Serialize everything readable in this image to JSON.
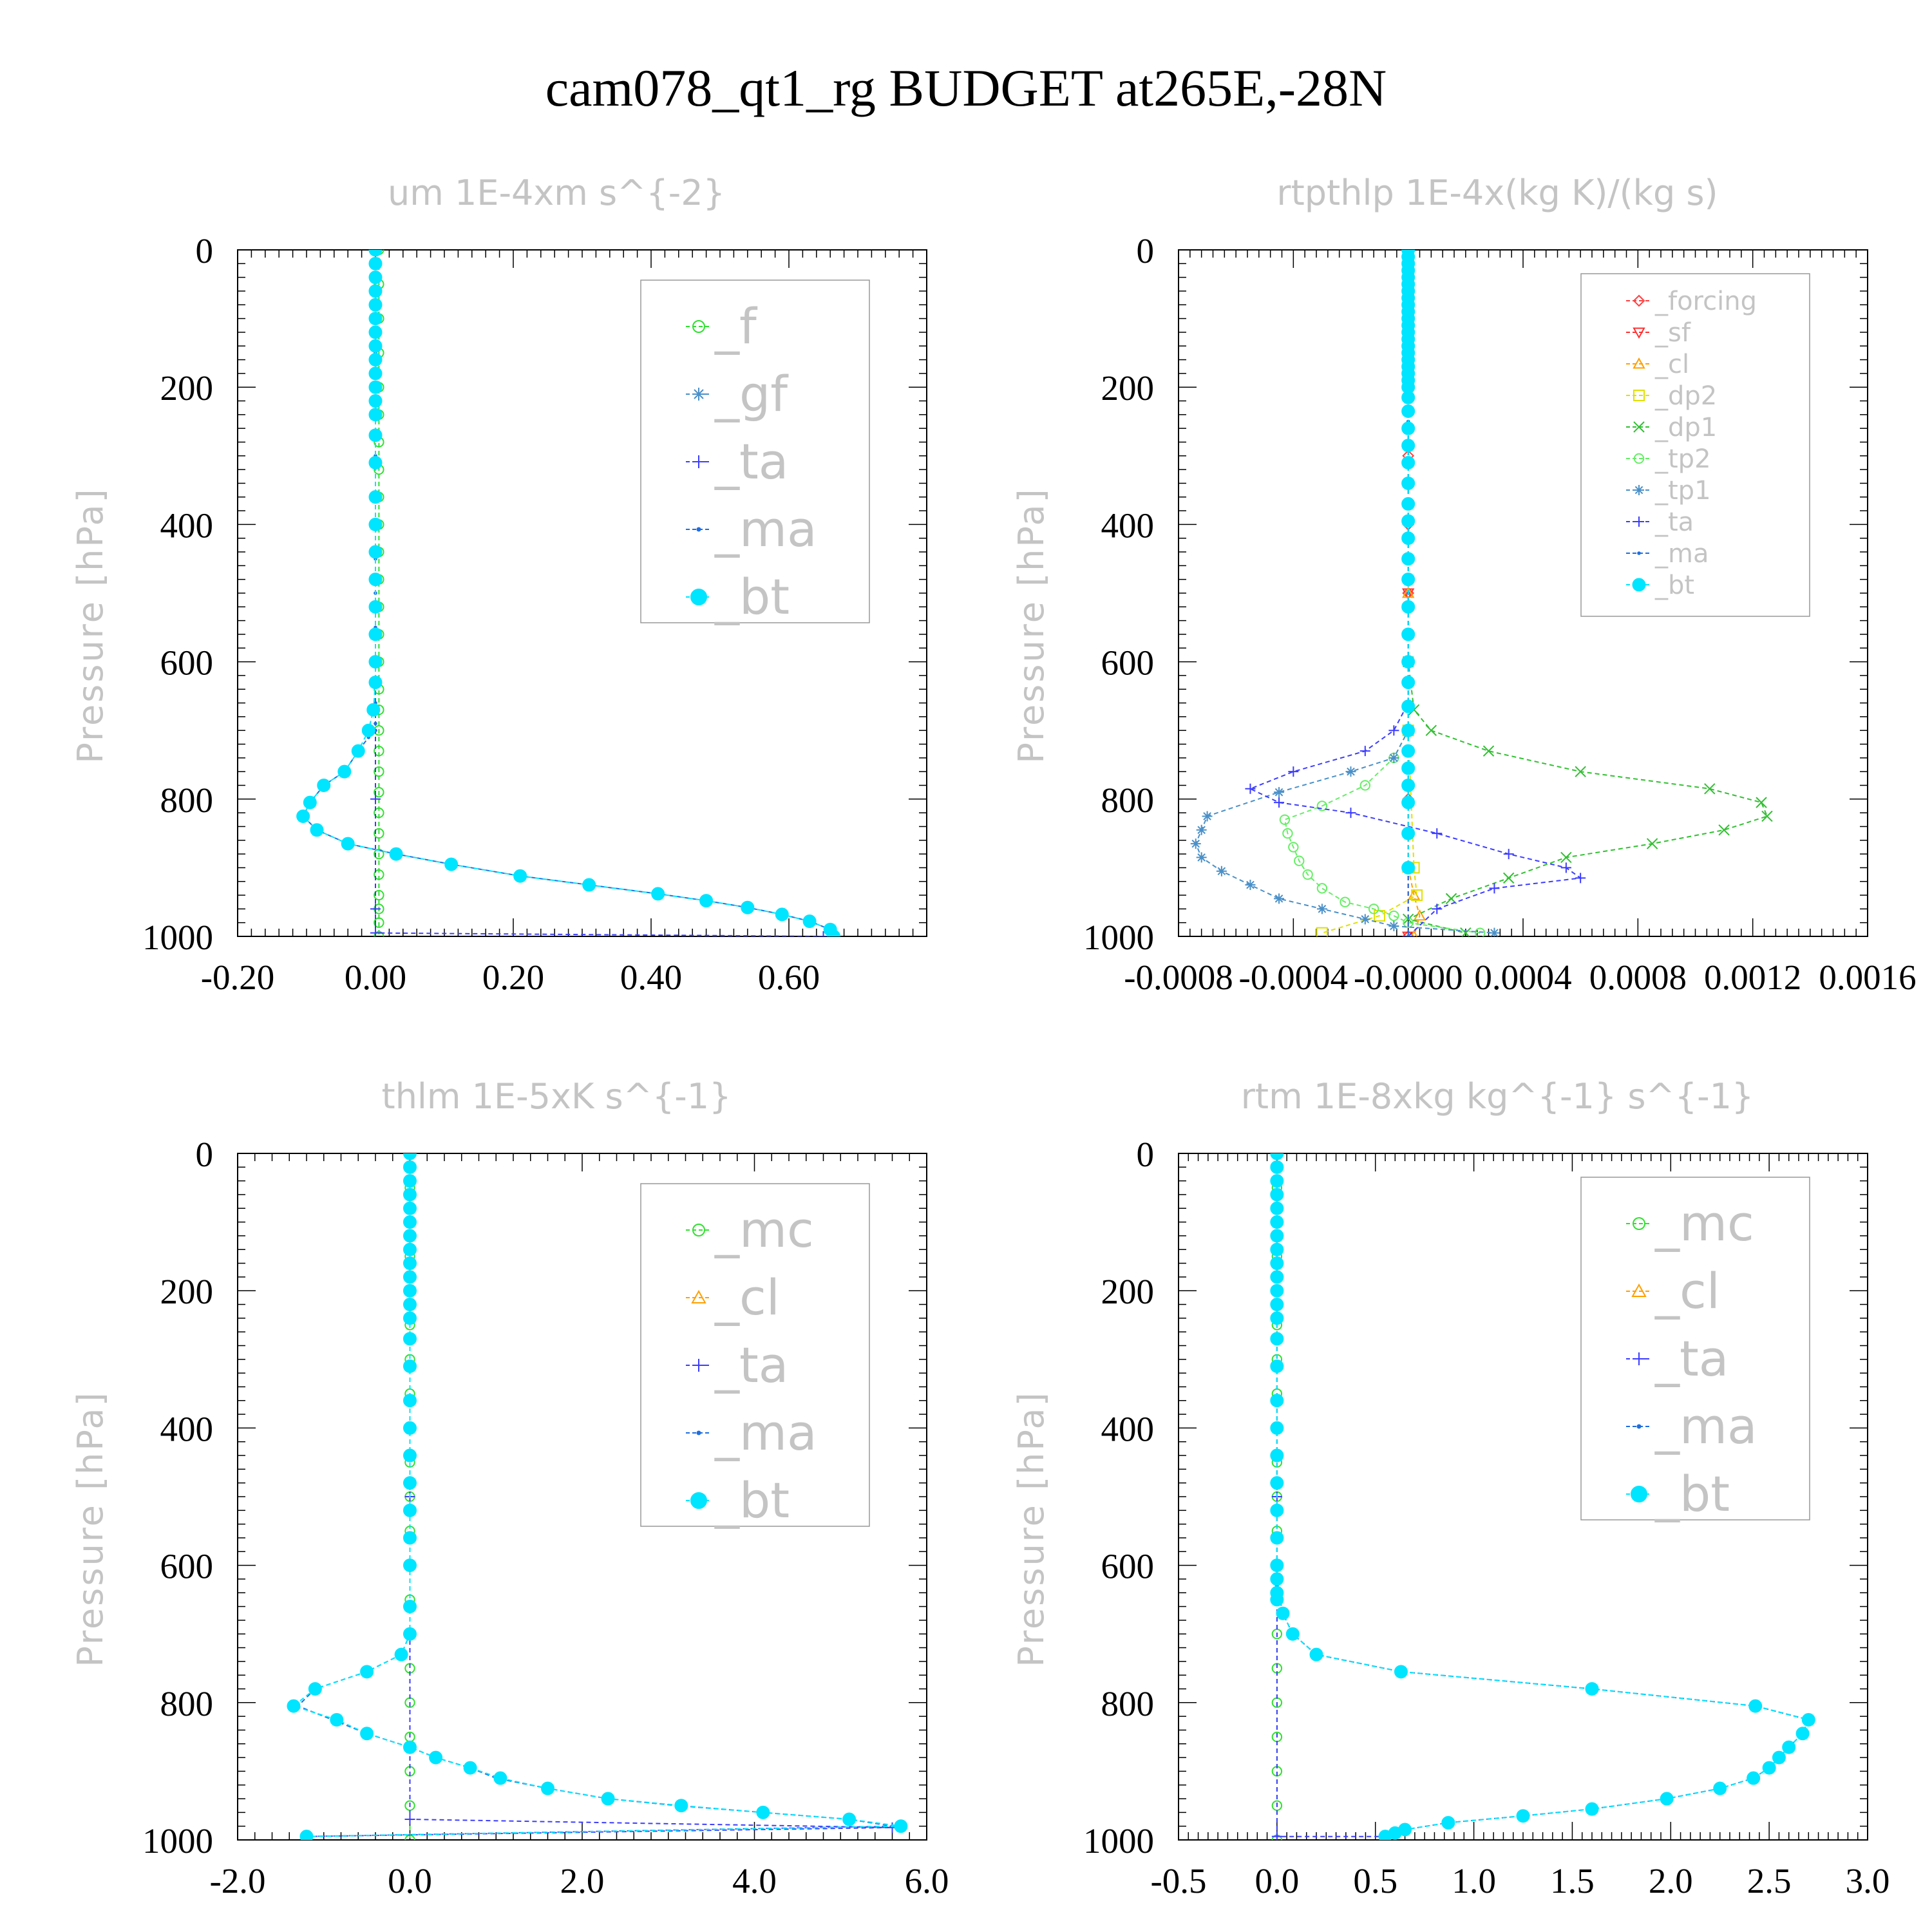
{
  "title": "cam078_qt1_rg  BUDGET at265E,-28N",
  "colors": {
    "_f": "#30e030",
    "_gf": "#4a90c8",
    "_ta": "#3c3cff",
    "_ma": "#1e6ee0",
    "_bt": "#00e5ff",
    "_forcing": "#ff4040",
    "_sf": "#ff3030",
    "_cl": "#ffa000",
    "_dp2": "#e0e000",
    "_dp1": "#30c030",
    "_tp2": "#66ee66",
    "_tp1": "#4a90c8",
    "_mc": "#30e030",
    "text_gray": "#c4c4c4"
  },
  "chart_data": [
    {
      "type": "line",
      "title": "um   1E-4xm s^{-2}",
      "ylabel": "Pressure [hPa]",
      "xlim": [
        -0.2,
        0.8
      ],
      "ylim": [
        1000,
        0
      ],
      "xticks": [
        "-0.20",
        "0.00",
        "0.20",
        "0.40",
        "0.60"
      ],
      "yticks": [
        "0",
        "200",
        "400",
        "600",
        "800",
        "1000"
      ],
      "legend": [
        "_f",
        "_gf",
        "_ta",
        "_ma",
        "_bt"
      ],
      "legend_position": "top-right",
      "series": [
        {
          "name": "_f",
          "x": [
            0.005,
            0.005,
            0.005,
            0.005,
            0.005,
            0.005,
            0.005,
            0.005,
            0.005,
            0.005,
            0.005,
            0.005,
            0.005,
            0.005,
            0.005,
            0.005,
            0.005,
            0.005,
            0.005,
            0.005,
            0.005,
            0.005,
            0.005,
            0.005,
            0.005,
            0.005,
            0.005,
            0.005,
            0.005
          ],
          "y": [
            0,
            50,
            100,
            150,
            200,
            240,
            280,
            320,
            360,
            400,
            440,
            480,
            520,
            560,
            600,
            640,
            670,
            700,
            730,
            760,
            790,
            820,
            850,
            880,
            910,
            940,
            960,
            980,
            1000
          ]
        },
        {
          "name": "_ta",
          "x": [
            0.0,
            0.0,
            0.0,
            0.0,
            0.0,
            0.65
          ],
          "y": [
            0,
            400,
            800,
            960,
            995,
            1000
          ]
        },
        {
          "name": "_ma",
          "x": [
            0.0,
            0.0,
            0.0,
            0.0,
            0.0,
            0.0,
            0.0,
            0.0,
            0.0,
            0.0,
            0.0,
            0.0,
            -0.01,
            -0.025,
            -0.045,
            -0.075,
            -0.095,
            -0.105,
            -0.085,
            -0.04,
            0.03,
            0.11,
            0.21,
            0.31,
            0.41,
            0.48,
            0.54,
            0.59,
            0.63,
            0.66,
            0.665
          ],
          "y": [
            0,
            150,
            300,
            400,
            450,
            500,
            550,
            600,
            630,
            660,
            690,
            700,
            710,
            730,
            760,
            780,
            805,
            825,
            845,
            865,
            880,
            895,
            912,
            925,
            938,
            948,
            958,
            968,
            978,
            990,
            1000
          ]
        },
        {
          "name": "_bt",
          "x": [
            0.0,
            0.0,
            0.0,
            0.0,
            0.0,
            0.0,
            0.0,
            0.0,
            0.0,
            0.0,
            0.0,
            0.0,
            0.0,
            0.0,
            0.0,
            0.0,
            0.0,
            0.0,
            0.0,
            0.0,
            0.0,
            0.0,
            0.0,
            -0.003,
            -0.01,
            -0.025,
            -0.045,
            -0.075,
            -0.095,
            -0.105,
            -0.085,
            -0.04,
            0.03,
            0.11,
            0.21,
            0.31,
            0.41,
            0.48,
            0.54,
            0.59,
            0.63,
            0.66,
            0.665
          ],
          "y": [
            0,
            20,
            40,
            60,
            80,
            100,
            120,
            140,
            160,
            180,
            200,
            220,
            240,
            270,
            310,
            360,
            400,
            440,
            480,
            520,
            560,
            600,
            630,
            670,
            700,
            730,
            760,
            780,
            805,
            825,
            845,
            865,
            880,
            895,
            912,
            925,
            938,
            948,
            958,
            968,
            978,
            990,
            1000
          ]
        }
      ]
    },
    {
      "type": "line",
      "title": "rtpthlp   1E-4x(kg K)/(kg s)",
      "ylabel": "Pressure [hPa]",
      "xlim": [
        -0.0008,
        0.0016
      ],
      "ylim": [
        1000,
        0
      ],
      "xticks": [
        "-0.0008",
        "-0.0004",
        "-0.0000",
        "0.0004",
        "0.0008",
        "0.0012",
        "0.0016"
      ],
      "yticks": [
        "0",
        "200",
        "400",
        "600",
        "800",
        "1000"
      ],
      "legend": [
        "_forcing",
        "_sf",
        "_cl",
        "_dp2",
        "_dp1",
        "_tp2",
        "_tp1",
        "_ta",
        "_ma",
        "_bt"
      ],
      "legend_position": "top-right",
      "series": [
        {
          "name": "_forcing",
          "x": [
            0,
            0,
            0,
            0,
            0,
            0,
            0,
            0,
            0,
            0,
            0
          ],
          "y": [
            0,
            100,
            200,
            300,
            400,
            500,
            600,
            700,
            800,
            900,
            1000
          ]
        },
        {
          "name": "_sf",
          "x": [
            0,
            0,
            0
          ],
          "y": [
            0,
            500,
            1000
          ]
        },
        {
          "name": "_cl",
          "x": [
            0,
            0,
            0,
            2e-05,
            4e-05,
            2e-05
          ],
          "y": [
            0,
            500,
            900,
            940,
            970,
            1000
          ]
        },
        {
          "name": "_dp2",
          "x": [
            0,
            0,
            2e-05,
            3e-05,
            -0.0001,
            -0.0003
          ],
          "y": [
            0,
            700,
            900,
            940,
            970,
            995
          ]
        },
        {
          "name": "_dp1",
          "x": [
            0,
            0,
            2e-05,
            8e-05,
            0.00028,
            0.0006,
            0.00105,
            0.00123,
            0.00125,
            0.0011,
            0.00085,
            0.00055,
            0.00035,
            0.00015,
            0.0,
            0.0002
          ],
          "y": [
            0,
            600,
            670,
            700,
            730,
            760,
            785,
            805,
            825,
            845,
            865,
            885,
            915,
            945,
            975,
            995
          ]
        },
        {
          "name": "_tp2",
          "x": [
            0,
            0,
            -5e-05,
            -0.00015,
            -0.0003,
            -0.00043,
            -0.00042,
            -0.0004,
            -0.00038,
            -0.00035,
            -0.0003,
            -0.00022,
            -0.00012,
            -5e-05,
            0.0,
            0.00025
          ],
          "y": [
            0,
            700,
            740,
            780,
            810,
            830,
            850,
            870,
            890,
            910,
            930,
            950,
            960,
            970,
            980,
            995
          ]
        },
        {
          "name": "_tp1",
          "x": [
            0,
            0,
            -5e-05,
            -0.0002,
            -0.00045,
            -0.0007,
            -0.00072,
            -0.00074,
            -0.00072,
            -0.00065,
            -0.00055,
            -0.00045,
            -0.0003,
            -0.00015,
            -5e-05,
            0.0003
          ],
          "y": [
            0,
            700,
            740,
            760,
            790,
            825,
            845,
            865,
            885,
            905,
            925,
            945,
            960,
            975,
            985,
            995
          ]
        },
        {
          "name": "_ta",
          "x": [
            0,
            0,
            -5e-05,
            -0.00015,
            -0.0004,
            -0.00055,
            -0.00045,
            -0.0002,
            0.0001,
            0.00035,
            0.00055,
            0.0006,
            0.0003,
            0.0001,
            0.0
          ],
          "y": [
            0,
            660,
            700,
            730,
            760,
            785,
            805,
            820,
            850,
            880,
            900,
            915,
            930,
            960,
            1000
          ]
        },
        {
          "name": "_ma",
          "x": [
            0,
            0,
            0,
            0,
            0
          ],
          "y": [
            0,
            250,
            500,
            750,
            1000
          ]
        },
        {
          "name": "_bt",
          "x": [
            0,
            0,
            0,
            0,
            0,
            0,
            0,
            0,
            0,
            0,
            0,
            0,
            0,
            0,
            0,
            0,
            0,
            0,
            0,
            0,
            0,
            0,
            0,
            0,
            0,
            0,
            0,
            0,
            0,
            0,
            0,
            0,
            0,
            0,
            0,
            0,
            0,
            0,
            0,
            0,
            0,
            0,
            0,
            0
          ],
          "y": [
            0,
            10,
            20,
            30,
            40,
            50,
            60,
            70,
            80,
            90,
            100,
            110,
            120,
            130,
            140,
            150,
            160,
            170,
            180,
            190,
            200,
            215,
            235,
            260,
            285,
            310,
            340,
            370,
            395,
            420,
            450,
            480,
            520,
            560,
            600,
            630,
            665,
            700,
            730,
            755,
            780,
            805,
            850,
            900
          ]
        }
      ]
    },
    {
      "type": "line",
      "title": "thlm   1E-5xK s^{-1}",
      "ylabel": "Pressure [hPa]",
      "xlim": [
        -2.0,
        6.0
      ],
      "ylim": [
        1000,
        0
      ],
      "xticks": [
        "-2.0",
        "0.0",
        "2.0",
        "4.0",
        "6.0"
      ],
      "yticks": [
        "0",
        "200",
        "400",
        "600",
        "800",
        "1000"
      ],
      "legend": [
        "_mc",
        "_cl",
        "_ta",
        "_ma",
        "_bt"
      ],
      "legend_position": "top-right",
      "series": [
        {
          "name": "_mc",
          "x": [
            0.0,
            0.0,
            0.0,
            0.0,
            0.0,
            0.0,
            0.0,
            0.0,
            0.0,
            0.0,
            0.0,
            0.0,
            0.0,
            0.0,
            0.0,
            0.0,
            0.0,
            0.0,
            0.0,
            0.0,
            0.0
          ],
          "y": [
            0,
            50,
            100,
            150,
            200,
            250,
            300,
            350,
            400,
            450,
            500,
            550,
            600,
            650,
            700,
            750,
            800,
            850,
            900,
            950,
            1000
          ]
        },
        {
          "name": "_ta",
          "x": [
            0.0,
            0.0,
            0.0,
            5.6,
            -1.2
          ],
          "y": [
            0,
            500,
            970,
            982,
            995
          ]
        },
        {
          "name": "_ma",
          "x": [
            0.0,
            0.0,
            0.0,
            -0.1,
            -0.5,
            -1.1,
            -1.3,
            -0.9,
            -0.5,
            0.0,
            0.3,
            0.7,
            1.0,
            1.6,
            2.3,
            3.1,
            4.1,
            5.1,
            5.6,
            -1.2
          ],
          "y": [
            0,
            600,
            700,
            730,
            755,
            780,
            805,
            825,
            845,
            865,
            880,
            895,
            910,
            925,
            940,
            950,
            960,
            970,
            980,
            995
          ]
        },
        {
          "name": "_bt",
          "x": [
            0.0,
            0.0,
            0.0,
            0.0,
            0.0,
            0.0,
            0.0,
            0.0,
            0.0,
            0.0,
            0.0,
            0.0,
            0.0,
            0.0,
            0.0,
            0.0,
            0.0,
            0.0,
            0.0,
            0.0,
            0.0,
            0.0,
            0.0,
            0.0,
            -0.1,
            -0.5,
            -1.1,
            -1.35,
            -0.85,
            -0.5,
            0.0,
            0.3,
            0.7,
            1.05,
            1.6,
            2.3,
            3.15,
            4.1,
            5.1,
            5.7,
            -1.2
          ],
          "y": [
            0,
            20,
            40,
            60,
            80,
            100,
            120,
            140,
            160,
            180,
            200,
            220,
            240,
            270,
            310,
            360,
            400,
            440,
            480,
            520,
            560,
            600,
            660,
            700,
            730,
            755,
            780,
            805,
            825,
            845,
            865,
            880,
            895,
            910,
            925,
            940,
            950,
            960,
            970,
            980,
            995
          ]
        }
      ]
    },
    {
      "type": "line",
      "title": "rtm   1E-8xkg kg^{-1} s^{-1}",
      "ylabel": "Pressure [hPa]",
      "xlim": [
        -0.5,
        3.0
      ],
      "ylim": [
        1000,
        0
      ],
      "xticks": [
        "-0.5",
        "0.0",
        "0.5",
        "1.0",
        "1.5",
        "2.0",
        "2.5",
        "3.0"
      ],
      "yticks": [
        "0",
        "200",
        "400",
        "600",
        "800",
        "1000"
      ],
      "legend": [
        "_mc",
        "_cl",
        "_ta",
        "_ma",
        "_bt"
      ],
      "legend_position": "top-right",
      "series": [
        {
          "name": "_mc",
          "x": [
            0.0,
            0.0,
            0.0,
            0.0,
            0.0,
            0.0,
            0.0,
            0.0,
            0.0,
            0.0,
            0.0,
            0.0,
            0.0,
            0.0,
            0.0,
            0.0,
            0.0,
            0.0,
            0.0,
            0.0,
            0.0
          ],
          "y": [
            0,
            50,
            100,
            150,
            200,
            250,
            300,
            350,
            400,
            450,
            500,
            550,
            600,
            650,
            700,
            750,
            800,
            850,
            900,
            950,
            1000
          ]
        },
        {
          "name": "_ta",
          "x": [
            0.0,
            0.0,
            0.0,
            0.55
          ],
          "y": [
            0,
            500,
            995,
            995
          ]
        },
        {
          "name": "_ma",
          "x": [
            0.0,
            0.0,
            0.03,
            0.08,
            0.2,
            0.63,
            1.6,
            2.43,
            2.7,
            2.67,
            2.6,
            2.55,
            2.5,
            2.42,
            2.25,
            1.98,
            1.6,
            1.25,
            0.87,
            0.65,
            0.6,
            0.55
          ],
          "y": [
            0,
            630,
            670,
            700,
            730,
            755,
            780,
            805,
            825,
            845,
            865,
            880,
            895,
            910,
            925,
            940,
            955,
            965,
            975,
            985,
            990,
            995
          ]
        },
        {
          "name": "_bt",
          "x": [
            0.0,
            0.0,
            0.0,
            0.0,
            0.0,
            0.0,
            0.0,
            0.0,
            0.0,
            0.0,
            0.0,
            0.0,
            0.0,
            0.0,
            0.0,
            0.0,
            0.0,
            0.0,
            0.0,
            0.0,
            0.0,
            0.0,
            0.0,
            0.0,
            0.0,
            0.03,
            0.08,
            0.2,
            0.63,
            1.6,
            2.43,
            2.7,
            2.67,
            2.6,
            2.55,
            2.5,
            2.42,
            2.25,
            1.98,
            1.6,
            1.25,
            0.87,
            0.65,
            0.6,
            0.55
          ],
          "y": [
            0,
            20,
            40,
            60,
            80,
            100,
            120,
            140,
            160,
            180,
            200,
            220,
            240,
            270,
            310,
            360,
            400,
            440,
            480,
            520,
            560,
            600,
            620,
            640,
            650,
            670,
            700,
            730,
            755,
            780,
            805,
            825,
            845,
            865,
            880,
            895,
            910,
            925,
            940,
            955,
            965,
            975,
            985,
            990,
            995
          ]
        }
      ]
    }
  ]
}
